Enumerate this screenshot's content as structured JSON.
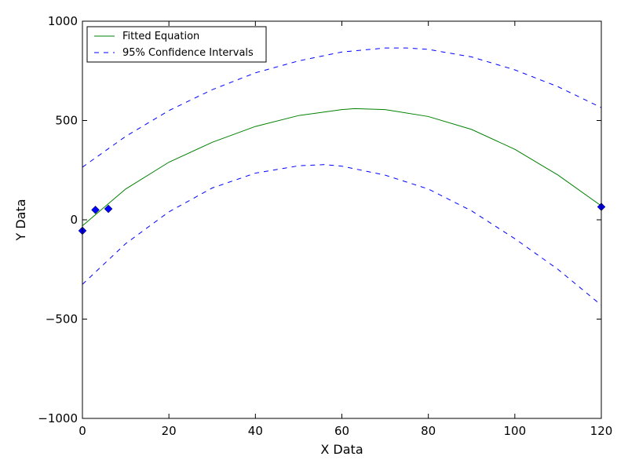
{
  "chart_data": {
    "type": "line",
    "title": "",
    "xlabel": "X Data",
    "ylabel": "Y Data",
    "xlim": [
      0,
      120
    ],
    "ylim": [
      -1000,
      1000
    ],
    "xticks": [
      0,
      20,
      40,
      60,
      80,
      100,
      120
    ],
    "yticks": [
      -1000,
      -500,
      0,
      500,
      1000
    ],
    "ytick_labels": [
      "−1000",
      "−500",
      "0",
      "500",
      "1000"
    ],
    "xtick_labels": [
      "0",
      "20",
      "40",
      "60",
      "80",
      "100",
      "120"
    ],
    "grid": false,
    "legend_position": "top-left",
    "scatter": {
      "marker": "diamond",
      "color": "#0000ff",
      "x": [
        0,
        3,
        6,
        120
      ],
      "y": [
        -55,
        50,
        55,
        65
      ]
    },
    "series": [
      {
        "name": "Fitted Equation",
        "color": "#008000",
        "style": "solid",
        "x": [
          0,
          10,
          20,
          30,
          40,
          50,
          60,
          63,
          70,
          80,
          90,
          100,
          110,
          120
        ],
        "y": [
          -30,
          155,
          290,
          390,
          470,
          525,
          555,
          560,
          555,
          520,
          455,
          355,
          225,
          70
        ]
      },
      {
        "name": "95% Confidence Intervals",
        "color": "#0000ff",
        "style": "dashed",
        "x": [
          0,
          10,
          20,
          30,
          40,
          50,
          60,
          70,
          75,
          80,
          90,
          100,
          110,
          120
        ],
        "y": [
          265,
          420,
          550,
          655,
          740,
          800,
          845,
          865,
          865,
          858,
          820,
          755,
          670,
          565
        ]
      },
      {
        "name": "",
        "color": "#0000ff",
        "style": "dashed",
        "x": [
          0,
          10,
          20,
          30,
          40,
          50,
          56,
          60,
          70,
          80,
          90,
          100,
          110,
          120
        ],
        "y": [
          -325,
          -120,
          40,
          160,
          235,
          272,
          278,
          270,
          225,
          155,
          45,
          -95,
          -250,
          -430
        ]
      }
    ]
  }
}
